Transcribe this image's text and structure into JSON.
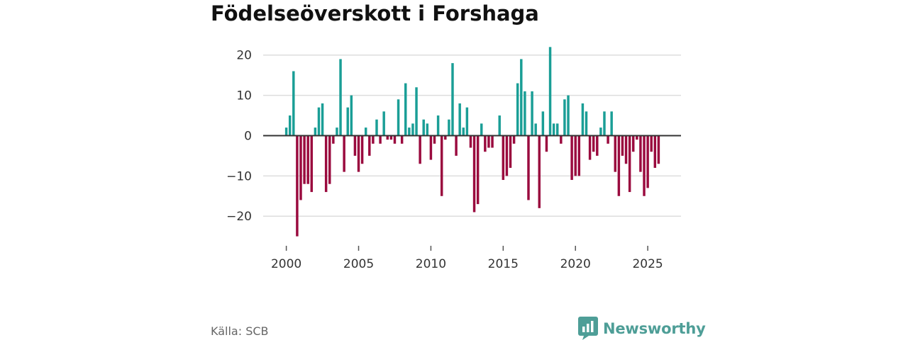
{
  "title": "Födelseöverskott i Forshaga",
  "source": "Källa: SCB",
  "brand": {
    "name": "Newsworthy",
    "icon": "newsworthy-logo-icon",
    "color": "#4e9e97"
  },
  "chart_data": {
    "type": "bar",
    "title": "Födelseöverskott i Forshaga",
    "xlabel": "",
    "ylabel": "",
    "ylim": [
      -27,
      24
    ],
    "xlim": [
      1998.4,
      2027.3
    ],
    "yticks": [
      20,
      10,
      0,
      -10,
      -20
    ],
    "ytick_labels": [
      "20",
      "10",
      "0",
      "−10",
      "−20"
    ],
    "xticks": [
      2000,
      2005,
      2010,
      2015,
      2020,
      2025
    ],
    "xtick_labels": [
      "2000",
      "2005",
      "2010",
      "2015",
      "2020",
      "2025"
    ],
    "grid": true,
    "colors": {
      "positive": "#1a9e96",
      "negative": "#9a0a3e",
      "grid": "#dddddd",
      "zero": "#333333"
    },
    "x_start": 2000.0,
    "x_step": 0.25,
    "values": [
      2,
      5,
      16,
      -25,
      -16,
      -12,
      -12,
      -14,
      2,
      7,
      8,
      -14,
      -12,
      -2,
      2,
      19,
      -9,
      7,
      10,
      -5,
      -9,
      -7,
      2,
      -5,
      -2,
      4,
      -2,
      6,
      -1,
      -1,
      -2,
      9,
      -2,
      13,
      2,
      3,
      12,
      -7,
      4,
      3,
      -6,
      -2,
      5,
      -15,
      -1,
      4,
      18,
      -5,
      8,
      2,
      7,
      -3,
      -19,
      -17,
      3,
      -4,
      -3,
      -3,
      0,
      5,
      -11,
      -10,
      -8,
      -2,
      13,
      19,
      11,
      -16,
      11,
      3,
      -18,
      6,
      -4,
      22,
      3,
      3,
      -2,
      9,
      10,
      -11,
      -10,
      -10,
      8,
      6,
      -6,
      -4,
      -5,
      2,
      6,
      -2,
      6,
      -9,
      -15,
      -5,
      -7,
      -14,
      -4,
      -1,
      -9,
      -15,
      -13,
      -4,
      -8,
      -7
    ]
  }
}
